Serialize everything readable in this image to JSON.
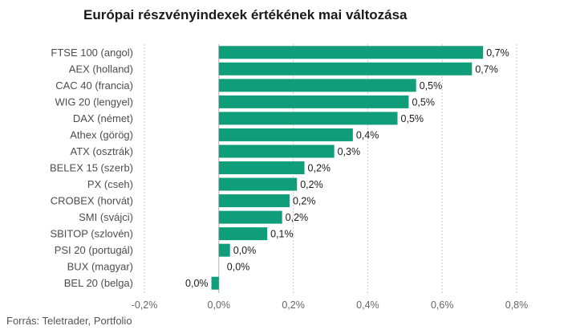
{
  "chart_data": {
    "type": "bar",
    "orientation": "horizontal",
    "title": "Európai részvényindexek értékének mai változása",
    "source": "Forrás: Teletrader, Portfolio",
    "bar_color": "#0f9d7a",
    "grid": true,
    "xlim": [
      -0.2,
      0.8
    ],
    "xticks": [
      -0.2,
      0.0,
      0.2,
      0.4,
      0.6,
      0.8
    ],
    "xtick_labels": [
      "-0,2%",
      "0,0%",
      "0,2%",
      "0,4%",
      "0,6%",
      "0,8%"
    ],
    "categories": [
      "FTSE 100 (angol)",
      "AEX (holland)",
      "CAC 40 (francia)",
      "WIG 20 (lengyel)",
      "DAX (német)",
      "Athex (görög)",
      "ATX (osztrák)",
      "BELEX 15 (szerb)",
      "PX (cseh)",
      "CROBEX (horvát)",
      "SMI (svájci)",
      "SBITOP (szlovén)",
      "PSI 20 (portugál)",
      "BUX (magyar)",
      "BEL 20 (belga)"
    ],
    "values": [
      0.71,
      0.68,
      0.53,
      0.51,
      0.48,
      0.36,
      0.31,
      0.23,
      0.21,
      0.19,
      0.17,
      0.13,
      0.03,
      0.0,
      -0.02
    ],
    "value_labels": [
      "0,7%",
      "0,7%",
      "0,5%",
      "0,5%",
      "0,5%",
      "0,4%",
      "0,3%",
      "0,2%",
      "0,2%",
      "0,2%",
      "0,2%",
      "0,1%",
      "0,0%",
      "0,0%",
      "0,0%"
    ]
  }
}
